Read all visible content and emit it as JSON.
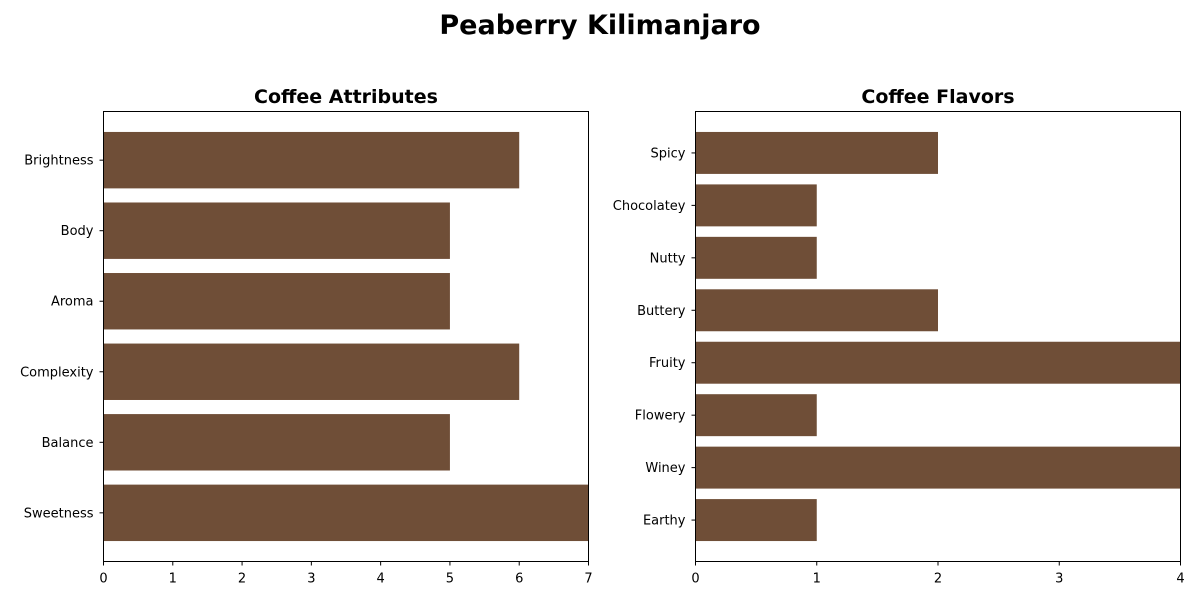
{
  "figure": {
    "title": "Peaberry Kilimanjaro"
  },
  "chart_data": [
    {
      "type": "bar",
      "orientation": "horizontal",
      "title": "Coffee Attributes",
      "categories": [
        "Brightness",
        "Body",
        "Aroma",
        "Complexity",
        "Balance",
        "Sweetness"
      ],
      "values": [
        6,
        5,
        5,
        6,
        5,
        7
      ],
      "xlim": [
        0,
        7
      ],
      "xticks": [
        "0",
        "1",
        "2",
        "3",
        "4",
        "5",
        "6",
        "7"
      ],
      "bar_color": "#6f4e37",
      "grid": false
    },
    {
      "type": "bar",
      "orientation": "horizontal",
      "title": "Coffee Flavors",
      "categories": [
        "Spicy",
        "Chocolatey",
        "Nutty",
        "Buttery",
        "Fruity",
        "Flowery",
        "Winey",
        "Earthy"
      ],
      "values": [
        2,
        1,
        1,
        2,
        4,
        1,
        4,
        1
      ],
      "xlim": [
        0,
        4
      ],
      "xticks": [
        "0",
        "1",
        "2",
        "3",
        "4"
      ],
      "bar_color": "#6f4e37",
      "grid": false
    }
  ]
}
